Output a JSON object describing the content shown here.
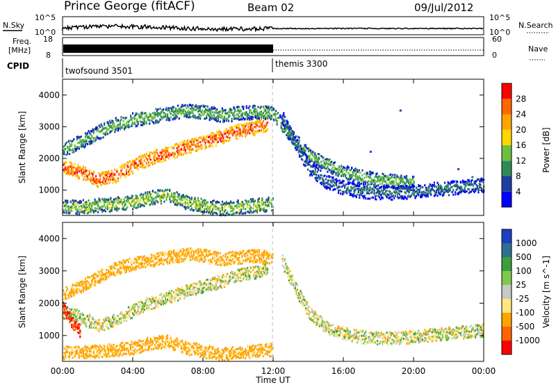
{
  "header": {
    "station": "Prince George (fitACF)",
    "beam": "Beam 02",
    "date": "09/Jul/2012"
  },
  "aux_labels": {
    "nsky": "N.Sky",
    "nsearch": "N.Search",
    "freq_line1": "Freq.",
    "freq_line2": "[MHz]",
    "nave": "Nave",
    "cpid": "CPID",
    "nsky_ticks": [
      "10^5",
      "10^0"
    ],
    "nsearch_ticks": [
      "10^5",
      "10^0"
    ],
    "freq_ticks": [
      "18",
      "8"
    ],
    "nave_ticks": [
      "60",
      "0"
    ]
  },
  "cpid_segments": [
    {
      "name": "twofsound 3501",
      "start_hour": 0,
      "end_hour": 12
    },
    {
      "name": "themis 3300",
      "start_hour": 12,
      "end_hour": 24
    }
  ],
  "x_axis": {
    "label": "Time UT",
    "range": [
      0,
      24
    ],
    "tick_labels": [
      "00:00",
      "04:00",
      "08:00",
      "12:00",
      "16:00",
      "20:00",
      "00:00"
    ]
  },
  "y_axis": {
    "label": "Slant Range [km]",
    "range": [
      200,
      4500
    ],
    "tick_labels": [
      "4000",
      "3000",
      "2000",
      "1000"
    ]
  },
  "colorbars": {
    "power": {
      "label": "Power [dB]",
      "tick_labels": [
        "28",
        "24",
        "20",
        "16",
        "12",
        "8",
        "4"
      ],
      "colors": [
        "#0000ff",
        "#1e3fa0",
        "#2e8b57",
        "#6fbf3f",
        "#ffd700",
        "#ffa500",
        "#ff6600",
        "#ff0000"
      ]
    },
    "velocity": {
      "label": "Velocity [m s^-1]",
      "tick_labels": [
        "1000",
        "500",
        "100",
        "25",
        "-25",
        "-100",
        "-500",
        "-1000"
      ],
      "colors": [
        "#ff0000",
        "#ff6600",
        "#ffa500",
        "#ffe680",
        "#c8c8c8",
        "#7ec850",
        "#3c9e3c",
        "#2f6f8f",
        "#1e3fbf"
      ]
    }
  },
  "chart_data": [
    {
      "type": "heatmap",
      "title": "Power",
      "xlabel": "Time UT",
      "ylabel": "Slant Range [km]",
      "xlim": [
        0,
        24
      ],
      "ylim": [
        200,
        4500
      ],
      "bands": [
        {
          "x": [
            0,
            1,
            2,
            3,
            4,
            5,
            6,
            7,
            8,
            9,
            10,
            11,
            11.7
          ],
          "y": [
            1700,
            1550,
            1300,
            1450,
            1750,
            2000,
            2150,
            2350,
            2500,
            2650,
            2850,
            2950,
            3100
          ],
          "power": 26
        },
        {
          "x": [
            0,
            1,
            2,
            3,
            4,
            5,
            6,
            7,
            8,
            9,
            10,
            11,
            12,
            13,
            14,
            15,
            16,
            17,
            18,
            19,
            20
          ],
          "y": [
            2250,
            2500,
            2800,
            3050,
            3200,
            3300,
            3400,
            3500,
            3450,
            3350,
            3400,
            3450,
            3400,
            2700,
            2100,
            1800,
            1550,
            1400,
            1300,
            1250,
            1200
          ],
          "power": 12
        },
        {
          "x": [
            12.5,
            13,
            14,
            15,
            16,
            17,
            18,
            19,
            20,
            21,
            22,
            23,
            24
          ],
          "y": [
            3300,
            2700,
            1700,
            1250,
            1050,
            950,
            900,
            900,
            950,
            1000,
            1050,
            1100,
            1150
          ],
          "power": 8
        },
        {
          "x": [
            0,
            1,
            2,
            3,
            4,
            5,
            6,
            7,
            8,
            9,
            10,
            11,
            12
          ],
          "y": [
            450,
            450,
            500,
            550,
            600,
            750,
            800,
            600,
            500,
            400,
            450,
            500,
            550
          ],
          "power": 14
        }
      ],
      "isolated_points": [
        {
          "x": 19.2,
          "y": 3500,
          "power": 6
        },
        {
          "x": 22.5,
          "y": 1650,
          "power": 6
        },
        {
          "x": 23.3,
          "y": 1400,
          "power": 8
        },
        {
          "x": 17.5,
          "y": 2200,
          "power": 6
        }
      ]
    },
    {
      "type": "heatmap",
      "title": "Velocity",
      "xlabel": "Time UT",
      "ylabel": "Slant Range [km]",
      "xlim": [
        0,
        24
      ],
      "ylim": [
        200,
        4500
      ],
      "bands": [
        {
          "x": [
            0,
            1,
            2,
            3,
            4,
            5,
            6,
            7,
            8,
            9,
            10,
            11,
            11.7
          ],
          "y": [
            1700,
            1550,
            1300,
            1450,
            1750,
            2000,
            2150,
            2350,
            2500,
            2650,
            2850,
            2950,
            3100
          ],
          "velocity": 0
        },
        {
          "x": [
            0,
            1,
            2,
            3,
            4,
            5,
            6,
            7,
            8,
            9,
            10,
            11,
            12
          ],
          "y": [
            2250,
            2500,
            2800,
            3050,
            3200,
            3300,
            3400,
            3500,
            3450,
            3350,
            3400,
            3450,
            3400
          ],
          "velocity": -200
        },
        {
          "x": [
            12.5,
            13,
            14,
            15,
            16,
            17,
            18,
            19,
            20,
            21,
            22,
            23,
            24
          ],
          "y": [
            3300,
            2700,
            1700,
            1250,
            1050,
            950,
            900,
            900,
            950,
            1000,
            1050,
            1100,
            1150
          ],
          "velocity": 0
        },
        {
          "x": [
            0,
            1,
            2,
            3,
            4,
            5,
            6,
            7,
            8,
            9,
            10,
            11,
            12
          ],
          "y": [
            450,
            450,
            500,
            550,
            600,
            750,
            800,
            600,
            500,
            400,
            450,
            500,
            550
          ],
          "velocity": -200
        },
        {
          "x": [
            0,
            0.3,
            0.6,
            1
          ],
          "y": [
            1900,
            1600,
            1300,
            1100
          ],
          "velocity": -1000
        }
      ]
    }
  ]
}
